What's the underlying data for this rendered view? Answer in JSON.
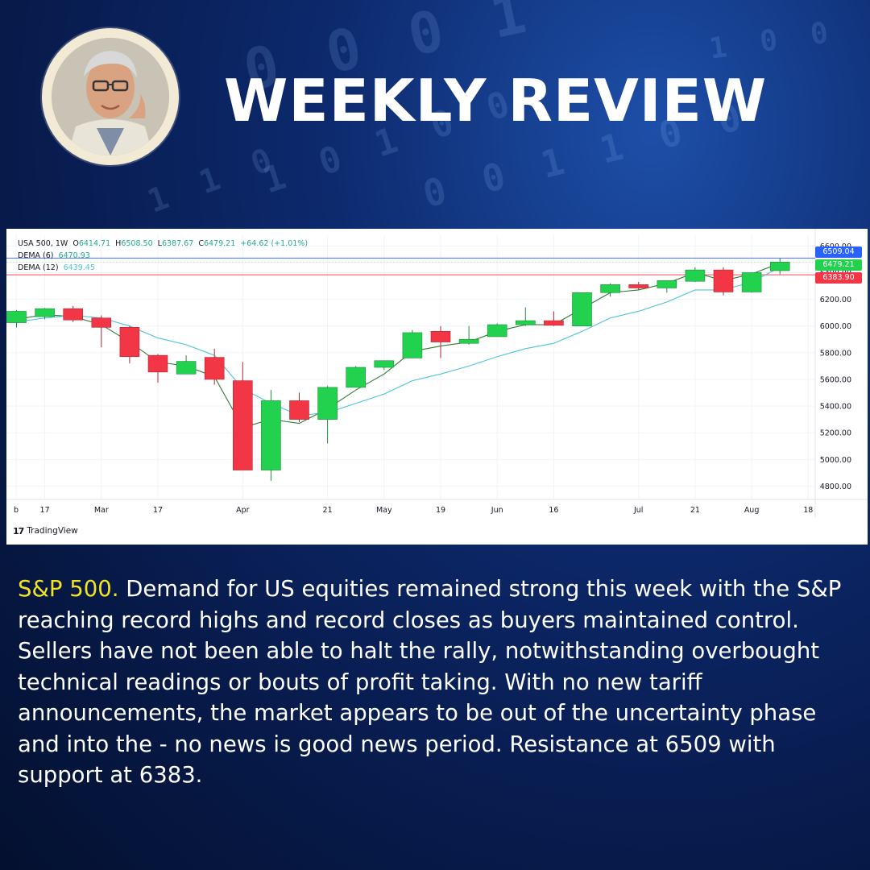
{
  "header": {
    "title": "WEEKLY REVIEW"
  },
  "chart_panel": {
    "legend": {
      "symbol": "USA 500",
      "interval": "1W",
      "open_label": "O",
      "open": "6414.71",
      "high_label": "H",
      "high": "6508.50",
      "low_label": "L",
      "low": "6387.67",
      "close_label": "C",
      "close": "6479.21",
      "change": "+64.62 (+1.01%)",
      "dema6_label": "DEMA (6)",
      "dema6_value": "6470.93",
      "dema12_label": "DEMA (12)",
      "dema12_value": "6439.45"
    },
    "price_tags": {
      "resistance": "6509.04",
      "last": "6479.21",
      "support": "6383.90"
    },
    "watermark": "TradingView",
    "colors": {
      "up": "#22d14d",
      "down": "#f23645",
      "dema6": "#2e7d32",
      "dema12": "#4dc4d6",
      "resistance_tag": "#2962ff",
      "support_tag": "#f23645"
    }
  },
  "article": {
    "lead": "S&P 500.",
    "body": " Demand for US equities remained strong this week with the S&P reaching record highs and record closes as buyers maintained control. Sellers have not been able to halt the rally, notwithstanding overbought technical readings or bouts of profit taking. With no new tariff announcements, the market appears to be out of the uncertainty phase and into the - no news is good news period. Resistance at 6509 with support at 6383."
  },
  "chart_data": {
    "type": "candlestick",
    "title": "USA 500, 1W",
    "ylim": [
      4700,
      6620
    ],
    "y_ticks": [
      4800,
      5000,
      5200,
      5400,
      5600,
      5800,
      6000,
      6200,
      6400,
      6600
    ],
    "y_tick_labels": [
      "4800.00",
      "5000.00",
      "5200.00",
      "5400.00",
      "5600.00",
      "5800.00",
      "6000.00",
      "6200.00",
      "6400.00",
      "6600.00"
    ],
    "x_tick_labels": [
      "b",
      "17",
      "Mar",
      "17",
      "Apr",
      "21",
      "May",
      "19",
      "Jun",
      "16",
      "Jul",
      "21",
      "Aug",
      "18"
    ],
    "x_tick_week_index": [
      -1,
      1,
      3,
      5,
      8,
      11,
      13,
      15,
      17,
      19,
      22,
      24,
      26,
      28
    ],
    "candles": [
      {
        "o": 6025,
        "h": 6120,
        "l": 5990,
        "c": 6110
      },
      {
        "o": 6070,
        "h": 6135,
        "l": 6050,
        "c": 6130
      },
      {
        "o": 6130,
        "h": 6150,
        "l": 6030,
        "c": 6045
      },
      {
        "o": 6060,
        "h": 6080,
        "l": 5840,
        "c": 5990
      },
      {
        "o": 5990,
        "h": 6000,
        "l": 5720,
        "c": 5770
      },
      {
        "o": 5780,
        "h": 5790,
        "l": 5575,
        "c": 5655
      },
      {
        "o": 5640,
        "h": 5780,
        "l": 5640,
        "c": 5735
      },
      {
        "o": 5765,
        "h": 5830,
        "l": 5560,
        "c": 5600
      },
      {
        "o": 5590,
        "h": 5730,
        "l": 4920,
        "c": 4920
      },
      {
        "o": 4920,
        "h": 5520,
        "l": 4840,
        "c": 5440
      },
      {
        "o": 5440,
        "h": 5500,
        "l": 5280,
        "c": 5300
      },
      {
        "o": 5300,
        "h": 5550,
        "l": 5120,
        "c": 5540
      },
      {
        "o": 5540,
        "h": 5700,
        "l": 5540,
        "c": 5690
      },
      {
        "o": 5690,
        "h": 5740,
        "l": 5670,
        "c": 5740
      },
      {
        "o": 5760,
        "h": 5970,
        "l": 5760,
        "c": 5950
      },
      {
        "o": 5960,
        "h": 6000,
        "l": 5760,
        "c": 5880
      },
      {
        "o": 5870,
        "h": 6000,
        "l": 5860,
        "c": 5900
      },
      {
        "o": 5920,
        "h": 6020,
        "l": 5920,
        "c": 6010
      },
      {
        "o": 6010,
        "h": 6140,
        "l": 6000,
        "c": 6040
      },
      {
        "o": 6040,
        "h": 6110,
        "l": 6000,
        "c": 6005
      },
      {
        "o": 6000,
        "h": 6250,
        "l": 6000,
        "c": 6250
      },
      {
        "o": 6250,
        "h": 6320,
        "l": 6220,
        "c": 6310
      },
      {
        "o": 6310,
        "h": 6330,
        "l": 6270,
        "c": 6285
      },
      {
        "o": 6285,
        "h": 6340,
        "l": 6250,
        "c": 6340
      },
      {
        "o": 6335,
        "h": 6440,
        "l": 6330,
        "c": 6420
      },
      {
        "o": 6420,
        "h": 6440,
        "l": 6230,
        "c": 6255
      },
      {
        "o": 6255,
        "h": 6400,
        "l": 6250,
        "c": 6400
      },
      {
        "o": 6414.71,
        "h": 6508.5,
        "l": 6387.67,
        "c": 6479.21
      }
    ],
    "series": [
      {
        "name": "DEMA (6)",
        "values": [
          6050,
          6085,
          6070,
          6010,
          5880,
          5730,
          5700,
          5620,
          5240,
          5300,
          5270,
          5380,
          5520,
          5640,
          5810,
          5850,
          5880,
          5960,
          6010,
          6010,
          6130,
          6250,
          6270,
          6320,
          6400,
          6340,
          6390,
          6470.93
        ]
      },
      {
        "name": "DEMA (12)",
        "values": [
          6030,
          6060,
          6080,
          6060,
          6000,
          5910,
          5860,
          5780,
          5530,
          5420,
          5330,
          5350,
          5420,
          5490,
          5590,
          5640,
          5700,
          5770,
          5830,
          5870,
          5960,
          6060,
          6110,
          6180,
          6270,
          6270,
          6330,
          6439.45
        ]
      }
    ],
    "horizontal_lines": [
      {
        "value": 6509.04
      },
      {
        "value": 6479.21
      },
      {
        "value": 6383.9
      }
    ]
  }
}
